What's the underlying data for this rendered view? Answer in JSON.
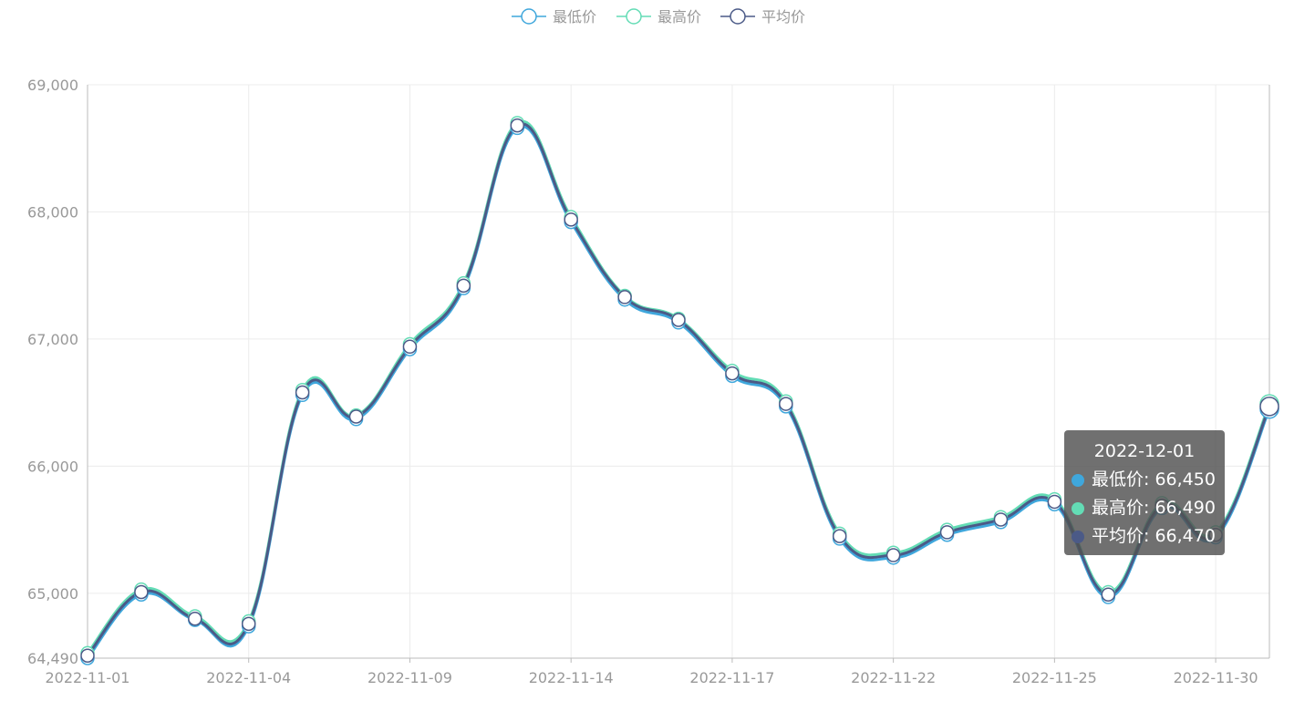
{
  "chart_data": {
    "type": "line",
    "smooth": true,
    "x": [
      "2022-11-01",
      "2022-11-02",
      "2022-11-03",
      "2022-11-04",
      "2022-11-07",
      "2022-11-08",
      "2022-11-09",
      "2022-11-10",
      "2022-11-11",
      "2022-11-14",
      "2022-11-15",
      "2022-11-16",
      "2022-11-17",
      "2022-11-18",
      "2022-11-21",
      "2022-11-22",
      "2022-11-23",
      "2022-11-24",
      "2022-11-25",
      "2022-11-28",
      "2022-11-29",
      "2022-11-30",
      "2022-12-01"
    ],
    "x_tick_labels": [
      "2022-11-01",
      "2022-11-04",
      "2022-11-09",
      "2022-11-14",
      "2022-11-17",
      "2022-11-22",
      "2022-11-25",
      "2022-11-30"
    ],
    "series": [
      {
        "name": "最低价",
        "color": "#3fa7dc",
        "values": [
          64490,
          64990,
          64790,
          64740,
          66560,
          66370,
          66920,
          67400,
          68660,
          67920,
          67310,
          67130,
          66710,
          66470,
          65430,
          65280,
          65460,
          65560,
          65700,
          64970,
          65670,
          65440,
          66450
        ]
      },
      {
        "name": "最高价",
        "color": "#63dcb5",
        "values": [
          64530,
          65030,
          64820,
          64780,
          66600,
          66400,
          66960,
          67440,
          68700,
          67960,
          67340,
          67160,
          66750,
          66510,
          65470,
          65320,
          65500,
          65600,
          65740,
          65010,
          65710,
          65480,
          66490
        ]
      },
      {
        "name": "平均价",
        "color": "#4b5a87",
        "values": [
          64510,
          65010,
          64800,
          64760,
          66580,
          66390,
          66940,
          67420,
          68680,
          67940,
          67330,
          67150,
          66730,
          66490,
          65450,
          65300,
          65480,
          65580,
          65720,
          64990,
          65690,
          65460,
          66470
        ]
      }
    ],
    "yticks": [
      "64,490",
      "65,000",
      "66,000",
      "67,000",
      "68,000",
      "69,000"
    ],
    "ylim": [
      64490,
      69000
    ],
    "grid": true,
    "legend_position": "top-center"
  },
  "tooltip": {
    "title": "2022-12-01",
    "rows": [
      {
        "label": "最低价: 66,450",
        "color": "#3fa7dc"
      },
      {
        "label": "最高价: 66,490",
        "color": "#63dcb5"
      },
      {
        "label": "平均价: 66,470",
        "color": "#4b5a87"
      }
    ]
  }
}
